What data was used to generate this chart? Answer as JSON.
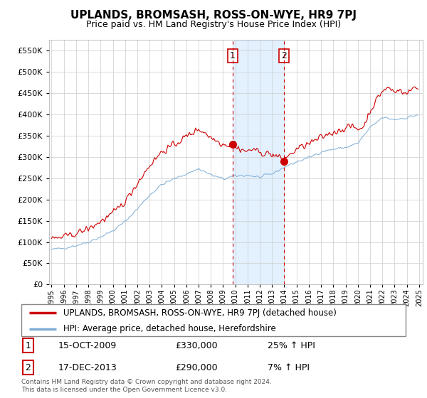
{
  "title": "UPLANDS, BROMSASH, ROSS-ON-WYE, HR9 7PJ",
  "subtitle": "Price paid vs. HM Land Registry's House Price Index (HPI)",
  "legend_line1": "UPLANDS, BROMSASH, ROSS-ON-WYE, HR9 7PJ (detached house)",
  "legend_line2": "HPI: Average price, detached house, Herefordshire",
  "transaction1_date": "15-OCT-2009",
  "transaction1_price": "£330,000",
  "transaction1_hpi": "25% ↑ HPI",
  "transaction2_date": "17-DEC-2013",
  "transaction2_price": "£290,000",
  "transaction2_hpi": "7% ↑ HPI",
  "footer": "Contains HM Land Registry data © Crown copyright and database right 2024.\nThis data is licensed under the Open Government Licence v3.0.",
  "ylim": [
    0,
    575000
  ],
  "yticks": [
    0,
    50000,
    100000,
    150000,
    200000,
    250000,
    300000,
    350000,
    400000,
    450000,
    500000,
    550000
  ],
  "red_color": "#cc0000",
  "blue_color": "#7eadd4",
  "shaded_color": "#ddeeff",
  "marker1_x": 2009.79,
  "marker1_y": 330000,
  "marker2_x": 2013.96,
  "marker2_y": 290000,
  "shade_x1": 2009.79,
  "shade_x2": 2013.96,
  "xmin": 1994.8,
  "xmax": 2025.3
}
